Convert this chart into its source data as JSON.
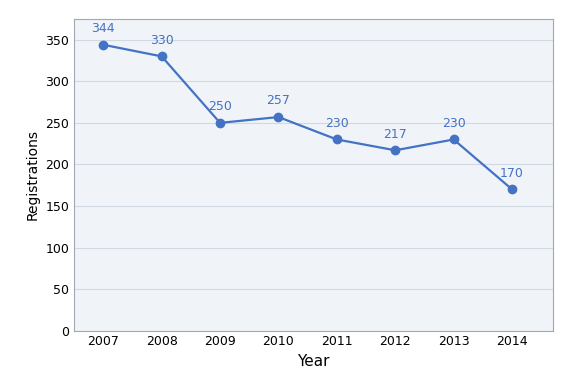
{
  "years": [
    2007,
    2008,
    2009,
    2010,
    2011,
    2012,
    2013,
    2014
  ],
  "values": [
    344,
    330,
    250,
    257,
    230,
    217,
    230,
    170
  ],
  "xlabel": "Year",
  "ylabel": "Registrations",
  "ylim": [
    0,
    375
  ],
  "yticks": [
    0,
    50,
    100,
    150,
    200,
    250,
    300,
    350
  ],
  "line_color": "#4472C4",
  "marker_color": "#4472C4",
  "marker_style": "o",
  "marker_size": 6,
  "line_width": 1.6,
  "annotation_color": "#4472C4",
  "annotation_fontsize": 9,
  "background_color": "#ffffff",
  "plot_bg_color": "#f0f4f8",
  "grid_color": "#d0d8e4",
  "xlabel_fontsize": 11,
  "ylabel_fontsize": 10,
  "tick_fontsize": 9,
  "spine_color": "#a0a8b8"
}
